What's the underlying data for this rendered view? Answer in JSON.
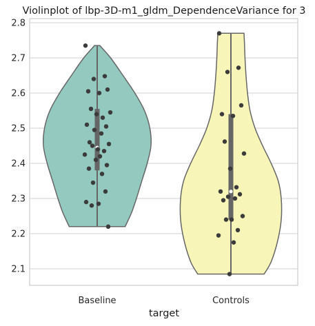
{
  "chart_data": {
    "type": "violin",
    "title": "Violinplot of lbp-3D-m1_gldm_DependenceVariance for 3",
    "xlabel": "target",
    "ylabel": "",
    "categories": [
      "Baseline",
      "Controls"
    ],
    "ylim": [
      2.05,
      2.81
    ],
    "yticks": [
      "2.1",
      "2.2",
      "2.3",
      "2.4",
      "2.5",
      "2.6",
      "2.7",
      "2.8"
    ],
    "grid": true,
    "colors": {
      "Baseline": "#93c9bf",
      "Controls": "#f7f6b8",
      "outline": "#666666",
      "points": "#3b3b3b",
      "box": "#666666"
    },
    "series": [
      {
        "category": "Baseline",
        "min": 2.22,
        "max": 2.735,
        "q1": 2.38,
        "median": 2.445,
        "q3": 2.555,
        "density": [
          [
            2.22,
            0.52
          ],
          [
            2.26,
            0.64
          ],
          [
            2.3,
            0.73
          ],
          [
            2.35,
            0.83
          ],
          [
            2.4,
            0.93
          ],
          [
            2.45,
            1.0
          ],
          [
            2.5,
            0.98
          ],
          [
            2.55,
            0.88
          ],
          [
            2.6,
            0.7
          ],
          [
            2.65,
            0.48
          ],
          [
            2.7,
            0.25
          ],
          [
            2.735,
            0.05
          ]
        ],
        "points": [
          2.735,
          2.648,
          2.64,
          2.61,
          2.605,
          2.6,
          2.555,
          2.545,
          2.54,
          2.53,
          2.51,
          2.505,
          2.495,
          2.485,
          2.46,
          2.455,
          2.45,
          2.44,
          2.435,
          2.425,
          2.42,
          2.41,
          2.395,
          2.385,
          2.37,
          2.345,
          2.32,
          2.29,
          2.285,
          2.28,
          2.22
        ]
      },
      {
        "category": "Controls",
        "min": 2.085,
        "max": 2.77,
        "q1": 2.24,
        "median": 2.32,
        "q3": 2.54,
        "density": [
          [
            2.085,
            0.66
          ],
          [
            2.12,
            0.8
          ],
          [
            2.18,
            0.93
          ],
          [
            2.24,
            1.0
          ],
          [
            2.3,
            1.0
          ],
          [
            2.35,
            0.94
          ],
          [
            2.4,
            0.8
          ],
          [
            2.45,
            0.63
          ],
          [
            2.5,
            0.48
          ],
          [
            2.55,
            0.38
          ],
          [
            2.6,
            0.33
          ],
          [
            2.65,
            0.3
          ],
          [
            2.7,
            0.28
          ],
          [
            2.74,
            0.27
          ],
          [
            2.77,
            0.26
          ]
        ],
        "points": [
          2.77,
          2.672,
          2.66,
          2.565,
          2.54,
          2.535,
          2.462,
          2.428,
          2.385,
          2.332,
          2.32,
          2.312,
          2.305,
          2.3,
          2.295,
          2.25,
          2.24,
          2.24,
          2.21,
          2.195,
          2.175,
          2.085
        ]
      }
    ]
  }
}
